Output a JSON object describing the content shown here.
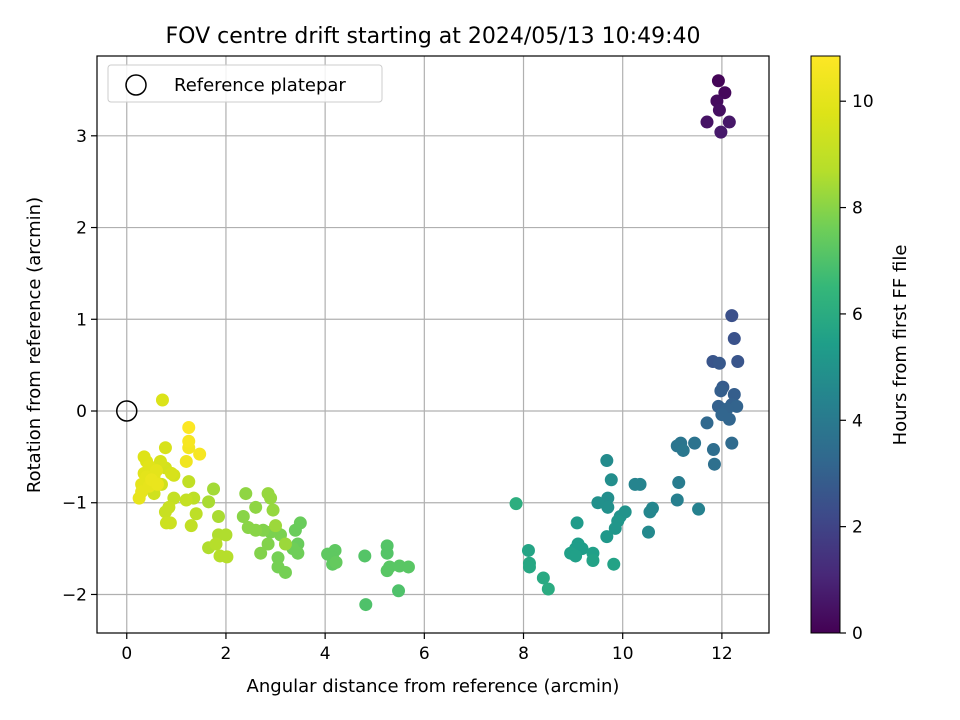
{
  "chart_data": {
    "type": "scatter",
    "title": "FOV centre drift starting at 2024/05/13 10:49:40",
    "xlabel": "Angular distance from reference (arcmin)",
    "ylabel": "Rotation from reference (arcmin)",
    "xlim": [
      -0.6,
      12.95
    ],
    "ylim": [
      -2.42,
      3.87
    ],
    "xticks": [
      0,
      2,
      4,
      6,
      8,
      10,
      12
    ],
    "yticks": [
      -2,
      -1,
      0,
      1,
      2,
      3
    ],
    "xtick_labels": [
      "0",
      "2",
      "4",
      "6",
      "8",
      "10",
      "12"
    ],
    "ytick_labels": [
      "−2",
      "−1",
      "0",
      "1",
      "2",
      "3"
    ],
    "grid": true,
    "legend": {
      "placement": "top-left",
      "entries": [
        "Reference platepar"
      ]
    },
    "reference_point": {
      "x": 0,
      "y": 0
    },
    "colorbar": {
      "label": "Hours from first FF file",
      "colormap": "viridis",
      "range": [
        0,
        10.85
      ],
      "ticks": [
        0,
        2,
        4,
        6,
        8,
        10
      ],
      "tick_labels": [
        "0",
        "2",
        "4",
        "6",
        "8",
        "10"
      ]
    },
    "points": [
      {
        "x": 11.93,
        "y": 3.6,
        "t": 0.1
      },
      {
        "x": 12.06,
        "y": 3.47,
        "t": 0.2
      },
      {
        "x": 11.9,
        "y": 3.38,
        "t": 0.3
      },
      {
        "x": 11.95,
        "y": 3.28,
        "t": 0.4
      },
      {
        "x": 11.7,
        "y": 3.15,
        "t": 0.5
      },
      {
        "x": 12.15,
        "y": 3.15,
        "t": 0.6
      },
      {
        "x": 11.98,
        "y": 3.04,
        "t": 0.7
      },
      {
        "x": 12.2,
        "y": 1.04,
        "t": 2.4
      },
      {
        "x": 12.25,
        "y": 0.79,
        "t": 2.5
      },
      {
        "x": 11.82,
        "y": 0.54,
        "t": 2.6
      },
      {
        "x": 11.95,
        "y": 0.52,
        "t": 2.7
      },
      {
        "x": 12.32,
        "y": 0.54,
        "t": 2.6
      },
      {
        "x": 12.02,
        "y": 0.26,
        "t": 2.8
      },
      {
        "x": 11.98,
        "y": 0.22,
        "t": 2.9
      },
      {
        "x": 12.25,
        "y": 0.18,
        "t": 2.9
      },
      {
        "x": 12.2,
        "y": 0.07,
        "t": 3.0
      },
      {
        "x": 11.93,
        "y": 0.05,
        "t": 3.0
      },
      {
        "x": 12.3,
        "y": 0.05,
        "t": 3.1
      },
      {
        "x": 12.1,
        "y": 0.02,
        "t": 3.1
      },
      {
        "x": 12.0,
        "y": -0.04,
        "t": 3.2
      },
      {
        "x": 11.7,
        "y": -0.13,
        "t": 3.3
      },
      {
        "x": 12.15,
        "y": -0.09,
        "t": 3.2
      },
      {
        "x": 12.2,
        "y": -0.35,
        "t": 3.4
      },
      {
        "x": 11.83,
        "y": -0.42,
        "t": 3.5
      },
      {
        "x": 11.85,
        "y": -0.58,
        "t": 3.6
      },
      {
        "x": 11.45,
        "y": -0.35,
        "t": 3.7
      },
      {
        "x": 11.1,
        "y": -0.38,
        "t": 3.8
      },
      {
        "x": 11.17,
        "y": -0.35,
        "t": 3.8
      },
      {
        "x": 11.22,
        "y": -0.43,
        "t": 3.9
      },
      {
        "x": 11.13,
        "y": -0.78,
        "t": 4.1
      },
      {
        "x": 11.1,
        "y": -0.97,
        "t": 4.2
      },
      {
        "x": 11.53,
        "y": -1.07,
        "t": 4.3
      },
      {
        "x": 10.25,
        "y": -0.8,
        "t": 4.4
      },
      {
        "x": 10.35,
        "y": -0.8,
        "t": 4.4
      },
      {
        "x": 10.6,
        "y": -1.06,
        "t": 4.5
      },
      {
        "x": 10.55,
        "y": -1.1,
        "t": 4.5
      },
      {
        "x": 10.52,
        "y": -1.32,
        "t": 4.6
      },
      {
        "x": 9.68,
        "y": -0.54,
        "t": 4.7
      },
      {
        "x": 9.77,
        "y": -0.75,
        "t": 4.8
      },
      {
        "x": 9.7,
        "y": -0.95,
        "t": 4.8
      },
      {
        "x": 9.5,
        "y": -1.0,
        "t": 4.9
      },
      {
        "x": 9.7,
        "y": -1.05,
        "t": 4.9
      },
      {
        "x": 9.95,
        "y": -1.15,
        "t": 5.0
      },
      {
        "x": 10.05,
        "y": -1.1,
        "t": 5.0
      },
      {
        "x": 9.9,
        "y": -1.2,
        "t": 5.1
      },
      {
        "x": 9.85,
        "y": -1.28,
        "t": 5.1
      },
      {
        "x": 9.68,
        "y": -1.37,
        "t": 5.2
      },
      {
        "x": 9.08,
        "y": -1.22,
        "t": 5.3
      },
      {
        "x": 9.1,
        "y": -1.45,
        "t": 5.4
      },
      {
        "x": 9.18,
        "y": -1.5,
        "t": 5.4
      },
      {
        "x": 9.05,
        "y": -1.5,
        "t": 5.4
      },
      {
        "x": 8.95,
        "y": -1.55,
        "t": 5.5
      },
      {
        "x": 9.05,
        "y": -1.58,
        "t": 5.5
      },
      {
        "x": 9.4,
        "y": -1.55,
        "t": 5.5
      },
      {
        "x": 9.4,
        "y": -1.63,
        "t": 5.6
      },
      {
        "x": 9.82,
        "y": -1.67,
        "t": 5.6
      },
      {
        "x": 8.1,
        "y": -1.52,
        "t": 5.7
      },
      {
        "x": 8.12,
        "y": -1.66,
        "t": 5.8
      },
      {
        "x": 8.12,
        "y": -1.7,
        "t": 5.8
      },
      {
        "x": 8.4,
        "y": -1.82,
        "t": 5.9
      },
      {
        "x": 8.5,
        "y": -1.94,
        "t": 6.0
      },
      {
        "x": 7.85,
        "y": -1.01,
        "t": 6.1
      },
      {
        "x": 4.82,
        "y": -2.11,
        "t": 7.0
      },
      {
        "x": 5.48,
        "y": -1.96,
        "t": 7.0
      },
      {
        "x": 4.8,
        "y": -1.58,
        "t": 7.1
      },
      {
        "x": 5.25,
        "y": -1.47,
        "t": 7.1
      },
      {
        "x": 5.25,
        "y": -1.55,
        "t": 7.1
      },
      {
        "x": 5.3,
        "y": -1.7,
        "t": 7.2
      },
      {
        "x": 5.25,
        "y": -1.74,
        "t": 7.2
      },
      {
        "x": 5.5,
        "y": -1.69,
        "t": 7.2
      },
      {
        "x": 5.68,
        "y": -1.7,
        "t": 7.2
      },
      {
        "x": 4.05,
        "y": -1.56,
        "t": 7.3
      },
      {
        "x": 4.2,
        "y": -1.52,
        "t": 7.3
      },
      {
        "x": 4.15,
        "y": -1.6,
        "t": 7.3
      },
      {
        "x": 4.15,
        "y": -1.67,
        "t": 7.3
      },
      {
        "x": 4.22,
        "y": -1.65,
        "t": 7.4
      },
      {
        "x": 3.5,
        "y": -1.22,
        "t": 7.5
      },
      {
        "x": 3.4,
        "y": -1.3,
        "t": 7.5
      },
      {
        "x": 3.45,
        "y": -1.45,
        "t": 7.5
      },
      {
        "x": 3.35,
        "y": -1.5,
        "t": 7.6
      },
      {
        "x": 3.45,
        "y": -1.55,
        "t": 7.6
      },
      {
        "x": 3.05,
        "y": -1.6,
        "t": 7.7
      },
      {
        "x": 3.05,
        "y": -1.7,
        "t": 7.7
      },
      {
        "x": 3.2,
        "y": -1.76,
        "t": 7.7
      },
      {
        "x": 3.0,
        "y": -1.3,
        "t": 7.8
      },
      {
        "x": 3.1,
        "y": -1.35,
        "t": 7.8
      },
      {
        "x": 2.9,
        "y": -1.32,
        "t": 7.8
      },
      {
        "x": 2.75,
        "y": -1.3,
        "t": 7.9
      },
      {
        "x": 2.85,
        "y": -1.45,
        "t": 7.9
      },
      {
        "x": 2.7,
        "y": -1.55,
        "t": 7.9
      },
      {
        "x": 2.6,
        "y": -1.3,
        "t": 8.0
      },
      {
        "x": 2.45,
        "y": -1.27,
        "t": 8.0
      },
      {
        "x": 2.35,
        "y": -1.15,
        "t": 8.0
      },
      {
        "x": 2.4,
        "y": -0.9,
        "t": 8.1
      },
      {
        "x": 2.6,
        "y": -1.05,
        "t": 8.1
      },
      {
        "x": 2.85,
        "y": -0.9,
        "t": 8.2
      },
      {
        "x": 2.9,
        "y": -0.95,
        "t": 8.2
      },
      {
        "x": 2.95,
        "y": -1.08,
        "t": 8.2
      },
      {
        "x": 3.0,
        "y": -1.25,
        "t": 8.3
      },
      {
        "x": 3.2,
        "y": -1.45,
        "t": 8.3
      },
      {
        "x": 1.75,
        "y": -0.85,
        "t": 8.4
      },
      {
        "x": 1.65,
        "y": -0.99,
        "t": 8.5
      },
      {
        "x": 1.85,
        "y": -1.15,
        "t": 8.5
      },
      {
        "x": 1.85,
        "y": -1.35,
        "t": 8.6
      },
      {
        "x": 2.0,
        "y": -1.35,
        "t": 8.6
      },
      {
        "x": 1.65,
        "y": -1.49,
        "t": 8.6
      },
      {
        "x": 1.8,
        "y": -1.45,
        "t": 8.7
      },
      {
        "x": 1.88,
        "y": -1.58,
        "t": 8.7
      },
      {
        "x": 2.02,
        "y": -1.59,
        "t": 8.7
      },
      {
        "x": 1.35,
        "y": -0.95,
        "t": 8.9
      },
      {
        "x": 1.4,
        "y": -1.12,
        "t": 8.9
      },
      {
        "x": 1.3,
        "y": -1.25,
        "t": 9.0
      },
      {
        "x": 1.25,
        "y": -0.77,
        "t": 9.0
      },
      {
        "x": 1.2,
        "y": -0.97,
        "t": 9.1
      },
      {
        "x": 0.95,
        "y": -0.95,
        "t": 9.1
      },
      {
        "x": 0.85,
        "y": -1.05,
        "t": 9.2
      },
      {
        "x": 0.78,
        "y": -1.1,
        "t": 9.2
      },
      {
        "x": 0.8,
        "y": -1.22,
        "t": 9.3
      },
      {
        "x": 0.88,
        "y": -1.22,
        "t": 9.3
      },
      {
        "x": 0.55,
        "y": -0.9,
        "t": 9.4
      },
      {
        "x": 0.7,
        "y": -0.8,
        "t": 9.4
      },
      {
        "x": 0.95,
        "y": -0.7,
        "t": 9.5
      },
      {
        "x": 0.78,
        "y": -0.62,
        "t": 9.5
      },
      {
        "x": 0.68,
        "y": -0.55,
        "t": 9.6
      },
      {
        "x": 0.78,
        "y": -0.4,
        "t": 9.6
      },
      {
        "x": 0.9,
        "y": -0.68,
        "t": 9.6
      },
      {
        "x": 0.72,
        "y": 0.12,
        "t": 9.7
      },
      {
        "x": 0.35,
        "y": -0.5,
        "t": 9.8
      },
      {
        "x": 0.4,
        "y": -0.55,
        "t": 9.8
      },
      {
        "x": 0.45,
        "y": -0.6,
        "t": 9.9
      },
      {
        "x": 0.35,
        "y": -0.68,
        "t": 9.9
      },
      {
        "x": 0.4,
        "y": -0.72,
        "t": 10.0
      },
      {
        "x": 0.3,
        "y": -0.8,
        "t": 10.0
      },
      {
        "x": 0.45,
        "y": -0.82,
        "t": 10.1
      },
      {
        "x": 0.3,
        "y": -0.88,
        "t": 10.1
      },
      {
        "x": 0.25,
        "y": -0.95,
        "t": 10.1
      },
      {
        "x": 0.55,
        "y": -0.72,
        "t": 10.0
      },
      {
        "x": 0.6,
        "y": -0.65,
        "t": 10.0
      },
      {
        "x": 0.5,
        "y": -0.75,
        "t": 10.2
      },
      {
        "x": 0.62,
        "y": -0.8,
        "t": 10.2
      },
      {
        "x": 1.2,
        "y": -0.55,
        "t": 10.4
      },
      {
        "x": 1.25,
        "y": -0.4,
        "t": 10.5
      },
      {
        "x": 1.25,
        "y": -0.33,
        "t": 10.6
      },
      {
        "x": 1.47,
        "y": -0.47,
        "t": 10.6
      },
      {
        "x": 1.25,
        "y": -0.18,
        "t": 10.8
      }
    ]
  }
}
